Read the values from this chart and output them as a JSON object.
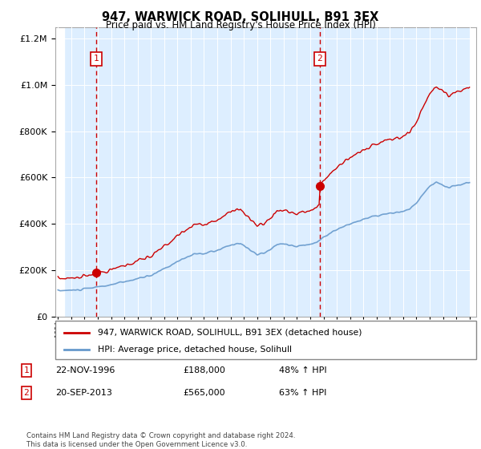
{
  "title": "947, WARWICK ROAD, SOLIHULL, B91 3EX",
  "subtitle": "Price paid vs. HM Land Registry's House Price Index (HPI)",
  "legend_line1": "947, WARWICK ROAD, SOLIHULL, B91 3EX (detached house)",
  "legend_line2": "HPI: Average price, detached house, Solihull",
  "note1_num": "1",
  "note1_date": "22-NOV-1996",
  "note1_price": "£188,000",
  "note1_hpi": "48% ↑ HPI",
  "note2_num": "2",
  "note2_date": "20-SEP-2013",
  "note2_price": "£565,000",
  "note2_hpi": "63% ↑ HPI",
  "footer": "Contains HM Land Registry data © Crown copyright and database right 2024.\nThis data is licensed under the Open Government Licence v3.0.",
  "price_color": "#cc0000",
  "hpi_color": "#6699cc",
  "vline_color": "#cc0000",
  "marker1_x": 1996.89,
  "marker1_y": 188000,
  "marker2_x": 2013.72,
  "marker2_y": 565000,
  "ylim": [
    0,
    1250000
  ],
  "xlim": [
    1993.8,
    2025.5
  ],
  "plot_bg_color": "#ddeeff",
  "hatch_region_color": "#cccccc"
}
